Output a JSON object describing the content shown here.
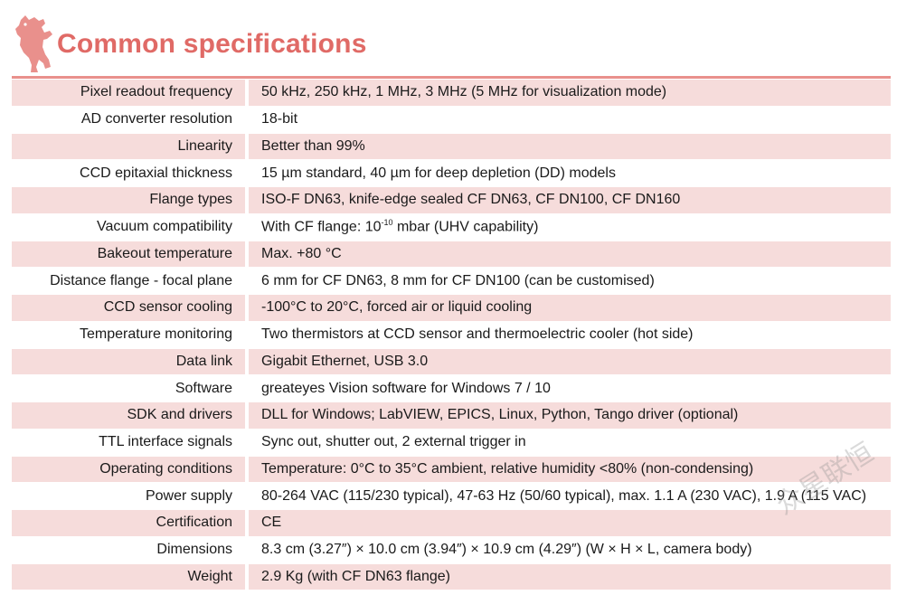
{
  "header": {
    "title": "Common specifications",
    "logo_icon": "berlin-bear-icon"
  },
  "colors": {
    "accent": "#e06a66",
    "row_shade": "#f6dcdb",
    "rule": "#e9908c"
  },
  "rows": [
    {
      "label": "Pixel readout frequency",
      "value": "50 kHz,  250 kHz, 1 MHz, 3 MHz (5 MHz for visualization mode)"
    },
    {
      "label": "AD converter resolution",
      "value": "18-bit"
    },
    {
      "label": "Linearity",
      "value": "Better than 99%"
    },
    {
      "label": "CCD epitaxial thickness",
      "value": "15 µm standard, 40 µm for deep depletion (DD) models"
    },
    {
      "label": "Flange types",
      "value": "ISO-F DN63, knife-edge sealed CF DN63, CF DN100, CF DN160"
    },
    {
      "label": "Vacuum compatibility",
      "value_prefix": "With CF flange: 10",
      "value_sup": "-10",
      "value_suffix": " mbar (UHV capability)"
    },
    {
      "label": "Bakeout temperature",
      "value": "Max. +80 °C"
    },
    {
      "label": "Distance flange - focal plane",
      "value": "6 mm for CF DN63, 8 mm for CF DN100 (can be customised)"
    },
    {
      "label": "CCD sensor cooling",
      "value": "-100°C to 20°C, forced air or liquid cooling"
    },
    {
      "label": "Temperature monitoring",
      "value": "Two thermistors at CCD sensor and thermoelectric cooler (hot side)"
    },
    {
      "label": "Data link",
      "value": "Gigabit Ethernet, USB 3.0"
    },
    {
      "label": "Software",
      "value": "greateyes Vision software for Windows 7 / 10"
    },
    {
      "label": "SDK and drivers",
      "value": "DLL for Windows; LabVIEW, EPICS, Linux, Python, Tango driver (optional)"
    },
    {
      "label": "TTL interface signals",
      "value": "Sync out, shutter out, 2 external trigger in"
    },
    {
      "label": "Operating conditions",
      "value": "Temperature: 0°C to 35°C ambient, relative humidity <80% (non-condensing)"
    },
    {
      "label": "Power supply",
      "value": "80-264 VAC (115/230 typical), 47-63 Hz (50/60 typical), max. 1.1 A (230 VAC), 1.9 A (115 VAC)"
    },
    {
      "label": "Certification",
      "value": "CE"
    },
    {
      "label": "Dimensions",
      "value": "8.3 cm (3.27″) × 10.0 cm (3.94″) × 10.9 cm (4.29″) (W × H × L, camera body)"
    },
    {
      "label": "Weight",
      "value": "2.9 Kg (with CF DN63 flange)"
    }
  ],
  "watermark": "众星联恒"
}
